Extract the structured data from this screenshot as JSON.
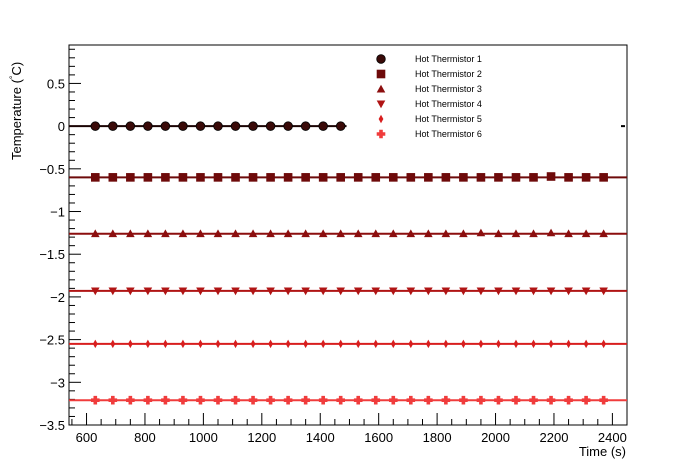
{
  "chart_data": {
    "type": "scatter",
    "xlabel": "Time (s)",
    "ylabel": "Temperature (",
    "ylabel_degree": "°",
    "ylabel_unit": "C)",
    "xlim": [
      540,
      2450
    ],
    "ylim": [
      -3.5,
      0.95
    ],
    "x_ticks": [
      600,
      800,
      1000,
      1200,
      1400,
      1600,
      1800,
      2000,
      2200,
      2400
    ],
    "y_ticks": [
      0.5,
      0,
      -0.5,
      -1,
      -1.5,
      -2,
      -2.5,
      -3,
      -3.5
    ],
    "x_tick_labels": [
      "600",
      "800",
      "1000",
      "1200",
      "1400",
      "1600",
      "1800",
      "2000",
      "2200",
      "2400"
    ],
    "y_tick_labels": [
      "0.5",
      "0",
      "−0.5",
      "−1",
      "−1.5",
      "−2",
      "−2.5",
      "−3",
      "−3.5"
    ],
    "grid": false,
    "legend_position": "top-right",
    "series": [
      {
        "name": "Hot Thermistor 1",
        "marker": "circle",
        "color": "#3a0a08",
        "fit_level": 0.0,
        "fit_range": [
          540,
          1490
        ],
        "x": [
          630,
          690,
          750,
          810,
          870,
          930,
          990,
          1050,
          1110,
          1170,
          1230,
          1290,
          1350,
          1410,
          1470
        ],
        "y": [
          0,
          0,
          0,
          0,
          0,
          0,
          0,
          0,
          0,
          0,
          0,
          0,
          0,
          0,
          0
        ]
      },
      {
        "name": "Hot Thermistor 2",
        "marker": "square",
        "color": "#6e0a0a",
        "fit_level": -0.6,
        "fit_range": [
          540,
          2450
        ],
        "x": [
          630,
          690,
          750,
          810,
          870,
          930,
          990,
          1050,
          1110,
          1170,
          1230,
          1290,
          1350,
          1410,
          1470,
          1530,
          1590,
          1650,
          1710,
          1770,
          1830,
          1890,
          1950,
          2010,
          2070,
          2130,
          2190,
          2250,
          2310,
          2370
        ],
        "y": [
          -0.6,
          -0.6,
          -0.6,
          -0.6,
          -0.6,
          -0.6,
          -0.6,
          -0.6,
          -0.6,
          -0.6,
          -0.6,
          -0.6,
          -0.6,
          -0.6,
          -0.6,
          -0.6,
          -0.6,
          -0.6,
          -0.6,
          -0.6,
          -0.6,
          -0.6,
          -0.6,
          -0.6,
          -0.6,
          -0.6,
          -0.59,
          -0.6,
          -0.6,
          -0.6
        ]
      },
      {
        "name": "Hot Thermistor 3",
        "marker": "triangle-up",
        "color": "#8c0e0e",
        "fit_level": -1.26,
        "fit_range": [
          540,
          2450
        ],
        "x": [
          630,
          690,
          750,
          810,
          870,
          930,
          990,
          1050,
          1110,
          1170,
          1230,
          1290,
          1350,
          1410,
          1470,
          1530,
          1590,
          1650,
          1710,
          1770,
          1830,
          1890,
          1950,
          2010,
          2070,
          2130,
          2190,
          2250,
          2310,
          2370
        ],
        "y": [
          -1.26,
          -1.26,
          -1.26,
          -1.26,
          -1.26,
          -1.26,
          -1.26,
          -1.26,
          -1.26,
          -1.26,
          -1.26,
          -1.26,
          -1.26,
          -1.26,
          -1.26,
          -1.26,
          -1.26,
          -1.26,
          -1.26,
          -1.26,
          -1.26,
          -1.26,
          -1.25,
          -1.26,
          -1.26,
          -1.26,
          -1.25,
          -1.26,
          -1.26,
          -1.26
        ]
      },
      {
        "name": "Hot Thermistor 4",
        "marker": "triangle-down",
        "color": "#b01414",
        "fit_level": -1.93,
        "fit_range": [
          540,
          2450
        ],
        "x": [
          630,
          690,
          750,
          810,
          870,
          930,
          990,
          1050,
          1110,
          1170,
          1230,
          1290,
          1350,
          1410,
          1470,
          1530,
          1590,
          1650,
          1710,
          1770,
          1830,
          1890,
          1950,
          2010,
          2070,
          2130,
          2190,
          2250,
          2310,
          2370
        ],
        "y": [
          -1.93,
          -1.93,
          -1.93,
          -1.93,
          -1.93,
          -1.93,
          -1.93,
          -1.93,
          -1.93,
          -1.93,
          -1.93,
          -1.93,
          -1.93,
          -1.93,
          -1.93,
          -1.93,
          -1.93,
          -1.93,
          -1.93,
          -1.93,
          -1.93,
          -1.93,
          -1.93,
          -1.93,
          -1.93,
          -1.93,
          -1.93,
          -1.93,
          -1.93,
          -1.93
        ]
      },
      {
        "name": "Hot Thermistor 5",
        "marker": "diamond",
        "color": "#d81e1e",
        "fit_level": -2.55,
        "fit_range": [
          540,
          2450
        ],
        "x": [
          630,
          690,
          750,
          810,
          870,
          930,
          990,
          1050,
          1110,
          1170,
          1230,
          1290,
          1350,
          1410,
          1470,
          1530,
          1590,
          1650,
          1710,
          1770,
          1830,
          1890,
          1950,
          2010,
          2070,
          2130,
          2190,
          2250,
          2310,
          2370
        ],
        "y": [
          -2.55,
          -2.55,
          -2.55,
          -2.55,
          -2.55,
          -2.55,
          -2.55,
          -2.55,
          -2.55,
          -2.55,
          -2.55,
          -2.55,
          -2.55,
          -2.55,
          -2.55,
          -2.55,
          -2.55,
          -2.55,
          -2.55,
          -2.55,
          -2.55,
          -2.55,
          -2.55,
          -2.55,
          -2.55,
          -2.55,
          -2.55,
          -2.55,
          -2.55,
          -2.55
        ]
      },
      {
        "name": "Hot Thermistor 6",
        "marker": "cross",
        "color": "#f03c3c",
        "fit_level": -3.21,
        "fit_range": [
          540,
          2450
        ],
        "x": [
          630,
          690,
          750,
          810,
          870,
          930,
          990,
          1050,
          1110,
          1170,
          1230,
          1290,
          1350,
          1410,
          1470,
          1530,
          1590,
          1650,
          1710,
          1770,
          1830,
          1890,
          1950,
          2010,
          2070,
          2130,
          2190,
          2250,
          2310,
          2370
        ],
        "y": [
          -3.21,
          -3.21,
          -3.21,
          -3.21,
          -3.21,
          -3.21,
          -3.21,
          -3.21,
          -3.21,
          -3.21,
          -3.21,
          -3.21,
          -3.21,
          -3.21,
          -3.21,
          -3.21,
          -3.21,
          -3.21,
          -3.21,
          -3.21,
          -3.21,
          -3.21,
          -3.21,
          -3.21,
          -3.21,
          -3.21,
          -3.21,
          -3.21,
          -3.21,
          -3.21
        ]
      }
    ]
  }
}
